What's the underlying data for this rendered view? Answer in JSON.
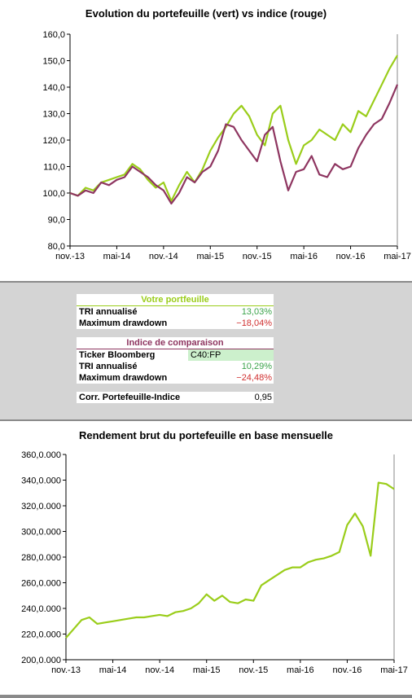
{
  "chart_data": [
    {
      "type": "line",
      "title": "Evolution du portefeuille (vert) vs indice (rouge)",
      "ylim": [
        80,
        160
      ],
      "yticks": [
        "80,0",
        "90,0",
        "100,0",
        "110,0",
        "120,0",
        "130,0",
        "140,0",
        "150,0",
        "160,0"
      ],
      "xticks": [
        "nov.-13",
        "mai-14",
        "nov.-14",
        "mai-15",
        "nov.-15",
        "mai-16",
        "nov.-16",
        "mai-17"
      ],
      "grid": false,
      "colors": {
        "portfolio": "#9acd1a",
        "index": "#8e3560"
      },
      "x": [
        0,
        1,
        2,
        3,
        4,
        5,
        6,
        7,
        8,
        9,
        10,
        11,
        12,
        13,
        14,
        15,
        16,
        17,
        18,
        19,
        20,
        21,
        22,
        23,
        24,
        25,
        26,
        27,
        28,
        29,
        30,
        31,
        32,
        33,
        34,
        35,
        36,
        37,
        38,
        39,
        40,
        41,
        42
      ],
      "series": [
        {
          "name": "portefeuille",
          "values": [
            100,
            99,
            102,
            101,
            104,
            105,
            106,
            107,
            111,
            109,
            105,
            102,
            104,
            97,
            103,
            108,
            104,
            109,
            116,
            121,
            125,
            130,
            133,
            129,
            122,
            118,
            130,
            133,
            120,
            111,
            118,
            120,
            124,
            122,
            120,
            126,
            123,
            131,
            129,
            135,
            141,
            147,
            152
          ]
        },
        {
          "name": "indice",
          "values": [
            100,
            99,
            101,
            100,
            104,
            103,
            105,
            106,
            110,
            108,
            106,
            103,
            101,
            96,
            100,
            106,
            104,
            108,
            110,
            116,
            126,
            125,
            120,
            116,
            112,
            122,
            125,
            112,
            101,
            108,
            109,
            114,
            107,
            106,
            111,
            109,
            110,
            117,
            122,
            126,
            128,
            134,
            141
          ]
        }
      ]
    },
    {
      "type": "line",
      "title": "Rendement brut du portefeuille en base mensuelle",
      "ylim": [
        200000,
        360000
      ],
      "yticks": [
        "200,0.000",
        "220,0.000",
        "240,0.000",
        "260,0.000",
        "280,0.000",
        "300,0.000",
        "320,0.000",
        "340,0.000",
        "360,0.000"
      ],
      "xticks": [
        "nov.-13",
        "mai-14",
        "nov.-14",
        "mai-15",
        "nov.-15",
        "mai-16",
        "nov.-16",
        "mai-17"
      ],
      "grid": false,
      "colors": {
        "series": "#9acd1a"
      },
      "x": [
        0,
        1,
        2,
        3,
        4,
        5,
        6,
        7,
        8,
        9,
        10,
        11,
        12,
        13,
        14,
        15,
        16,
        17,
        18,
        19,
        20,
        21,
        22,
        23,
        24,
        25,
        26,
        27,
        28,
        29,
        30,
        31,
        32,
        33,
        34,
        35,
        36,
        37,
        38,
        39,
        40,
        41,
        42
      ],
      "series": [
        {
          "values": [
            217000,
            224000,
            231000,
            233000,
            228000,
            229000,
            230000,
            231000,
            232000,
            233000,
            233000,
            234000,
            235000,
            234000,
            237000,
            238000,
            240000,
            244000,
            251000,
            246000,
            250000,
            245000,
            244000,
            247000,
            246000,
            258000,
            262000,
            266000,
            270000,
            272000,
            272000,
            276000,
            278000,
            279000,
            281000,
            284000,
            305000,
            314000,
            304000,
            281000,
            338000,
            337000,
            333000
          ]
        }
      ]
    }
  ],
  "summary": {
    "portfolio_header": "Votre portfeuille",
    "tri_label": "TRI annualisé",
    "tri_value": "13,03%",
    "drawdown_label": "Maximum drawdown",
    "drawdown_value": "−18,04%",
    "index_header": "Indice de comparaison",
    "ticker_label": "Ticker Bloomberg",
    "ticker_value": "C40:FP",
    "index_tri_label": "TRI annualisé",
    "index_tri_value": "10,29%",
    "index_drawdown_label": "Maximum drawdown",
    "index_drawdown_value": "−24,48%",
    "corr_label": "Corr. Portefeuille-Indice",
    "corr_value": "0,95"
  }
}
